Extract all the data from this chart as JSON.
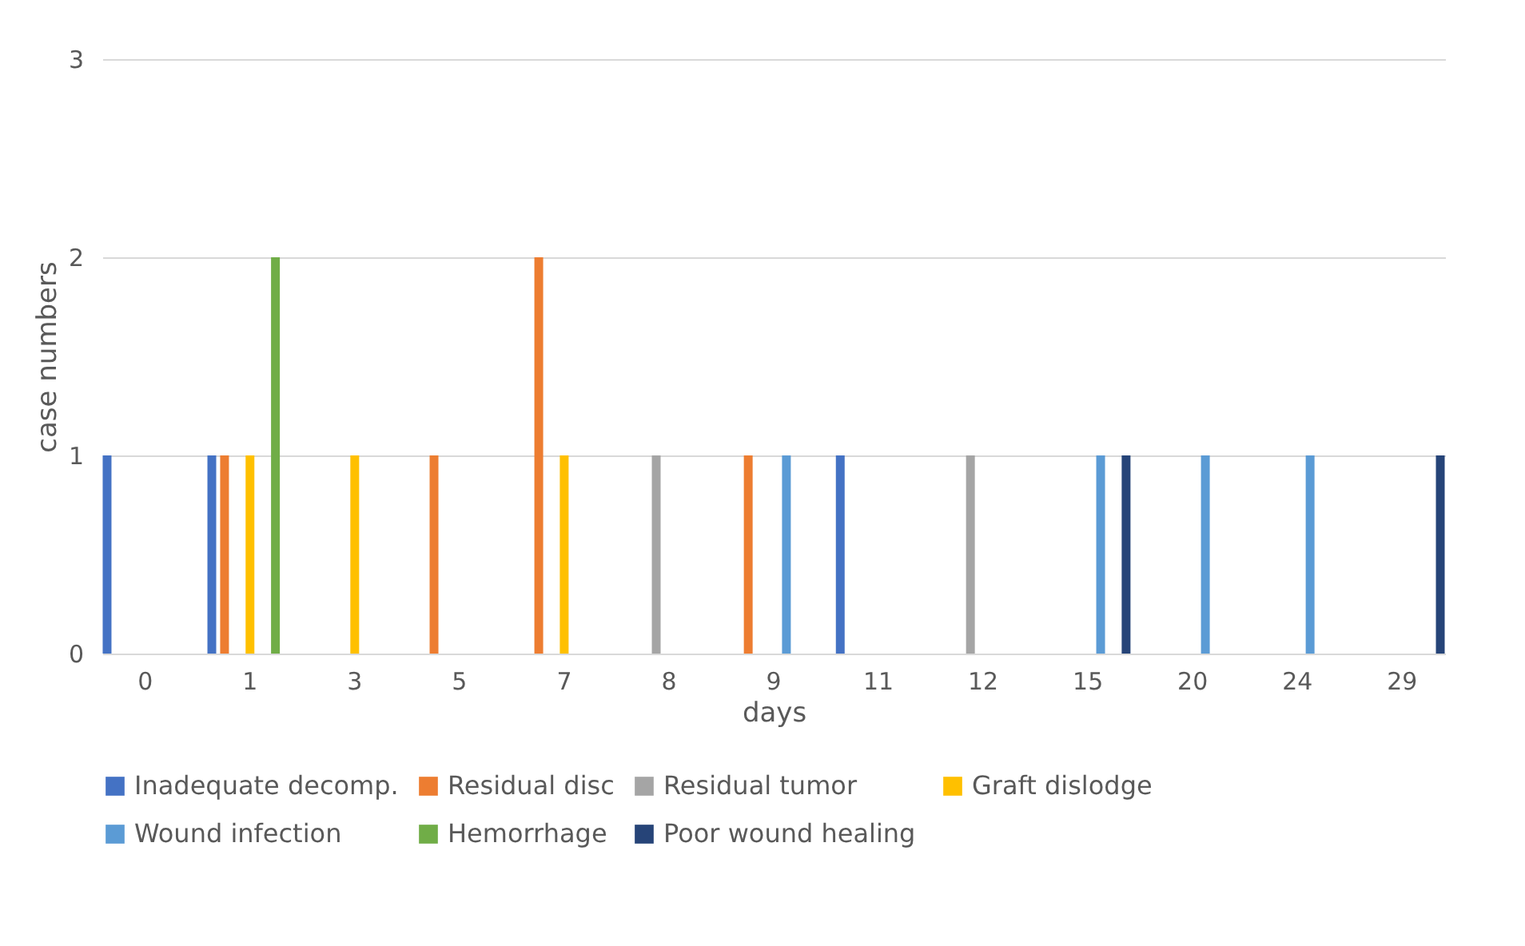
{
  "chart_data": {
    "type": "bar",
    "xlabel": "days",
    "ylabel": "case numbers",
    "categories": [
      "0",
      "1",
      "3",
      "5",
      "7",
      "8",
      "9",
      "11",
      "12",
      "15",
      "20",
      "24",
      "29"
    ],
    "series": [
      {
        "name": "Inadequate decomp.",
        "color": "#4472c4",
        "values": [
          1,
          1,
          0,
          0,
          0,
          0,
          0,
          1,
          0,
          0,
          0,
          0,
          0
        ]
      },
      {
        "name": "Residual disc",
        "color": "#ed7d31",
        "values": [
          0,
          1,
          0,
          1,
          2,
          0,
          1,
          0,
          0,
          0,
          0,
          0,
          0
        ]
      },
      {
        "name": "Residual tumor",
        "color": "#a5a5a5",
        "values": [
          0,
          0,
          0,
          0,
          0,
          1,
          0,
          0,
          1,
          0,
          0,
          0,
          0
        ]
      },
      {
        "name": "Graft dislodge",
        "color": "#ffc000",
        "values": [
          0,
          1,
          1,
          0,
          1,
          0,
          0,
          0,
          0,
          0,
          0,
          0,
          0
        ]
      },
      {
        "name": "Wound infection",
        "color": "#5b9bd5",
        "values": [
          0,
          0,
          0,
          0,
          0,
          0,
          1,
          0,
          0,
          1,
          1,
          1,
          0
        ]
      },
      {
        "name": "Hemorrhage",
        "color": "#70ad47",
        "values": [
          0,
          2,
          0,
          0,
          0,
          0,
          0,
          0,
          0,
          0,
          0,
          0,
          0
        ]
      },
      {
        "name": "Poor wound  healing",
        "color": "#264478",
        "values": [
          0,
          0,
          0,
          0,
          0,
          0,
          0,
          0,
          0,
          1,
          0,
          0,
          1
        ]
      }
    ],
    "ylim": [
      0,
      3
    ],
    "yticks": [
      0,
      1,
      2,
      3
    ],
    "grid": "y",
    "legend": "bottom"
  }
}
